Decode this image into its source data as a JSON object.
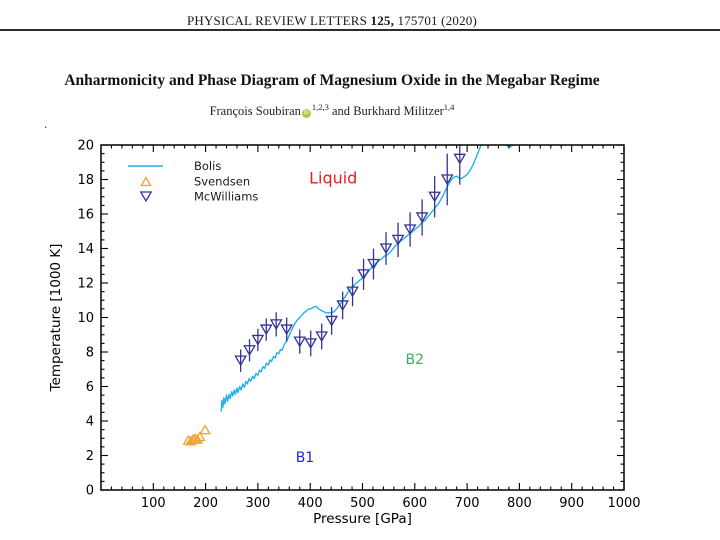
{
  "header": {
    "journal": "PHYSICAL REVIEW LETTERS",
    "volume": "125,",
    "article": "175701 (2020)"
  },
  "title": "Anharmonicity and Phase Diagram of Magnesium Oxide in the Megabar Regime",
  "authors": {
    "name1": "François Soubiran",
    "orcid_icon": "iD",
    "sup1": "1,2,3",
    "connector": " and ",
    "name2": "Burkhard Militzer",
    "sup2": "1,4"
  },
  "stray_text": ".",
  "chart_data": {
    "type": "line+scatter",
    "title": "",
    "xlabel": "Pressure [GPa]",
    "ylabel": "Temperature [1000 K]",
    "xlim": [
      0,
      1000
    ],
    "ylim": [
      0,
      20
    ],
    "x_major_ticks": [
      100,
      200,
      300,
      400,
      500,
      600,
      700,
      800,
      900,
      1000
    ],
    "x_minor_step": 20,
    "y_major_ticks": [
      0,
      2,
      4,
      6,
      8,
      10,
      12,
      14,
      16,
      18,
      20
    ],
    "y_minor_step": 0.5,
    "grid": false,
    "legend_position": "top-left",
    "series": [
      {
        "name": "Bolis",
        "kind": "line",
        "color": "#22b1e8",
        "segments": [
          [
            [
              230,
              4.55
            ],
            [
              231,
              5.2
            ],
            [
              233,
              4.8
            ],
            [
              235,
              5.35
            ],
            [
              237,
              5.0
            ],
            [
              240,
              5.5
            ],
            [
              242,
              5.15
            ],
            [
              245,
              5.55
            ],
            [
              247,
              5.3
            ],
            [
              250,
              5.7
            ],
            [
              252,
              5.45
            ],
            [
              255,
              5.8
            ],
            [
              257,
              5.55
            ],
            [
              260,
              5.9
            ],
            [
              262,
              5.65
            ],
            [
              265,
              6.0
            ],
            [
              268,
              5.8
            ],
            [
              271,
              6.15
            ],
            [
              274,
              5.95
            ],
            [
              277,
              6.3
            ],
            [
              280,
              6.15
            ],
            [
              283,
              6.45
            ],
            [
              286,
              6.3
            ],
            [
              290,
              6.6
            ],
            [
              293,
              6.45
            ],
            [
              296,
              6.75
            ],
            [
              300,
              6.65
            ],
            [
              303,
              6.95
            ],
            [
              306,
              6.85
            ],
            [
              310,
              7.15
            ],
            [
              313,
              7.05
            ],
            [
              316,
              7.35
            ],
            [
              320,
              7.25
            ],
            [
              323,
              7.55
            ],
            [
              326,
              7.45
            ],
            [
              330,
              7.75
            ],
            [
              333,
              7.65
            ],
            [
              336,
              7.95
            ],
            [
              340,
              7.9
            ],
            [
              343,
              8.15
            ],
            [
              346,
              8.1
            ],
            [
              350,
              8.4
            ],
            [
              353,
              8.55
            ],
            [
              356,
              8.7
            ],
            [
              359,
              8.9
            ],
            [
              362,
              9.1
            ],
            [
              365,
              9.3
            ],
            [
              368,
              9.5
            ],
            [
              371,
              9.65
            ],
            [
              374,
              9.8
            ],
            [
              377,
              9.9
            ],
            [
              380,
              10.0
            ],
            [
              383,
              10.1
            ],
            [
              386,
              10.2
            ],
            [
              389,
              10.3
            ],
            [
              392,
              10.35
            ],
            [
              395,
              10.45
            ],
            [
              398,
              10.5
            ],
            [
              401,
              10.5
            ],
            [
              404,
              10.55
            ],
            [
              407,
              10.6
            ],
            [
              410,
              10.65
            ],
            [
              413,
              10.6
            ],
            [
              416,
              10.5
            ],
            [
              419,
              10.45
            ],
            [
              422,
              10.4
            ],
            [
              425,
              10.35
            ],
            [
              428,
              10.3
            ],
            [
              431,
              10.25
            ],
            [
              434,
              10.3
            ],
            [
              437,
              10.25
            ],
            [
              440,
              10.3
            ],
            [
              443,
              10.3
            ],
            [
              446,
              10.35
            ],
            [
              449,
              10.45
            ],
            [
              452,
              10.55
            ],
            [
              455,
              10.7
            ],
            [
              458,
              10.8
            ],
            [
              461,
              10.95
            ],
            [
              464,
              11.1
            ],
            [
              467,
              11.2
            ],
            [
              470,
              11.35
            ],
            [
              473,
              11.5
            ],
            [
              476,
              11.6
            ],
            [
              479,
              11.7
            ],
            [
              482,
              11.8
            ],
            [
              485,
              11.9
            ],
            [
              488,
              12.0
            ],
            [
              491,
              12.05
            ],
            [
              494,
              12.15
            ],
            [
              497,
              12.2
            ],
            [
              500,
              12.3
            ],
            [
              504,
              12.45
            ],
            [
              508,
              12.55
            ],
            [
              512,
              12.7
            ],
            [
              516,
              12.85
            ],
            [
              520,
              13.0
            ],
            [
              524,
              13.1
            ],
            [
              528,
              13.2
            ],
            [
              532,
              13.3
            ],
            [
              536,
              13.4
            ],
            [
              540,
              13.5
            ],
            [
              544,
              13.6
            ],
            [
              548,
              13.65
            ],
            [
              552,
              13.75
            ],
            [
              556,
              13.9
            ],
            [
              560,
              14.05
            ],
            [
              564,
              14.2
            ],
            [
              568,
              14.3
            ],
            [
              572,
              14.4
            ],
            [
              576,
              14.5
            ],
            [
              580,
              14.6
            ],
            [
              584,
              14.7
            ],
            [
              588,
              14.8
            ],
            [
              592,
              14.9
            ],
            [
              596,
              15.0
            ],
            [
              600,
              15.1
            ],
            [
              604,
              15.2
            ],
            [
              608,
              15.3
            ],
            [
              612,
              15.45
            ],
            [
              616,
              15.55
            ],
            [
              620,
              15.65
            ],
            [
              624,
              15.8
            ],
            [
              628,
              15.95
            ],
            [
              632,
              16.1
            ],
            [
              636,
              16.25
            ],
            [
              640,
              16.4
            ],
            [
              644,
              16.55
            ],
            [
              648,
              16.75
            ],
            [
              652,
              16.95
            ],
            [
              656,
              17.2
            ],
            [
              660,
              17.45
            ],
            [
              664,
              17.7
            ],
            [
              668,
              17.9
            ],
            [
              672,
              18.05
            ],
            [
              676,
              18.15
            ],
            [
              680,
              18.2
            ],
            [
              684,
              18.1
            ],
            [
              688,
              18.05
            ],
            [
              692,
              18.1
            ],
            [
              696,
              18.2
            ],
            [
              700,
              18.3
            ],
            [
              704,
              18.45
            ],
            [
              708,
              18.65
            ],
            [
              712,
              18.9
            ],
            [
              716,
              19.2
            ],
            [
              720,
              19.5
            ],
            [
              724,
              19.8
            ],
            [
              728,
              20.05
            ],
            [
              732,
              20.3
            ]
          ],
          [
            [
              768,
              20.3
            ],
            [
              773,
              20.05
            ],
            [
              778,
              19.92
            ],
            [
              783,
              19.9
            ],
            [
              788,
              20.0
            ],
            [
              793,
              20.18
            ],
            [
              797,
              20.32
            ]
          ]
        ]
      },
      {
        "name": "Svendsen",
        "kind": "scatter",
        "marker": "triangle-up",
        "color": "#f0a232",
        "marker_size": 8,
        "points": [
          [
            167,
            2.9
          ],
          [
            172,
            2.85
          ],
          [
            176,
            2.95
          ],
          [
            180,
            3.0
          ],
          [
            184,
            2.95
          ],
          [
            189,
            3.1
          ],
          [
            199,
            3.5
          ]
        ]
      },
      {
        "name": "McWilliams",
        "kind": "scatter",
        "marker": "triangle-down",
        "color": "#333399",
        "marker_size": 9,
        "points": [
          [
            267,
            7.5,
            0.65
          ],
          [
            284,
            8.1,
            0.65
          ],
          [
            300,
            8.7,
            0.65
          ],
          [
            316,
            9.3,
            0.65
          ],
          [
            335,
            9.6,
            0.7
          ],
          [
            355,
            9.3,
            0.7
          ],
          [
            380,
            8.6,
            0.7
          ],
          [
            401,
            8.5,
            0.75
          ],
          [
            422,
            8.9,
            0.75
          ],
          [
            441,
            9.8,
            0.8
          ],
          [
            462,
            10.7,
            0.8
          ],
          [
            481,
            11.5,
            0.85
          ],
          [
            502,
            12.5,
            0.9
          ],
          [
            521,
            13.1,
            0.9
          ],
          [
            545,
            14.0,
            0.95
          ],
          [
            568,
            14.5,
            1.0
          ],
          [
            591,
            15.1,
            1.0
          ],
          [
            614,
            15.8,
            1.05
          ],
          [
            638,
            17.0,
            1.2
          ],
          [
            662,
            18.0,
            1.5
          ],
          [
            686,
            19.2,
            1.5
          ]
        ]
      }
    ],
    "annotations": [
      {
        "text": "Liquid",
        "color": "#e62020",
        "x": 444,
        "y": 18.1,
        "size": 16
      },
      {
        "text": "B2",
        "color": "#3fae5c",
        "x": 600,
        "y": 7.6,
        "size": 14
      },
      {
        "text": "B1",
        "color": "#2424cc",
        "x": 390,
        "y": 1.9,
        "size": 14
      }
    ]
  }
}
